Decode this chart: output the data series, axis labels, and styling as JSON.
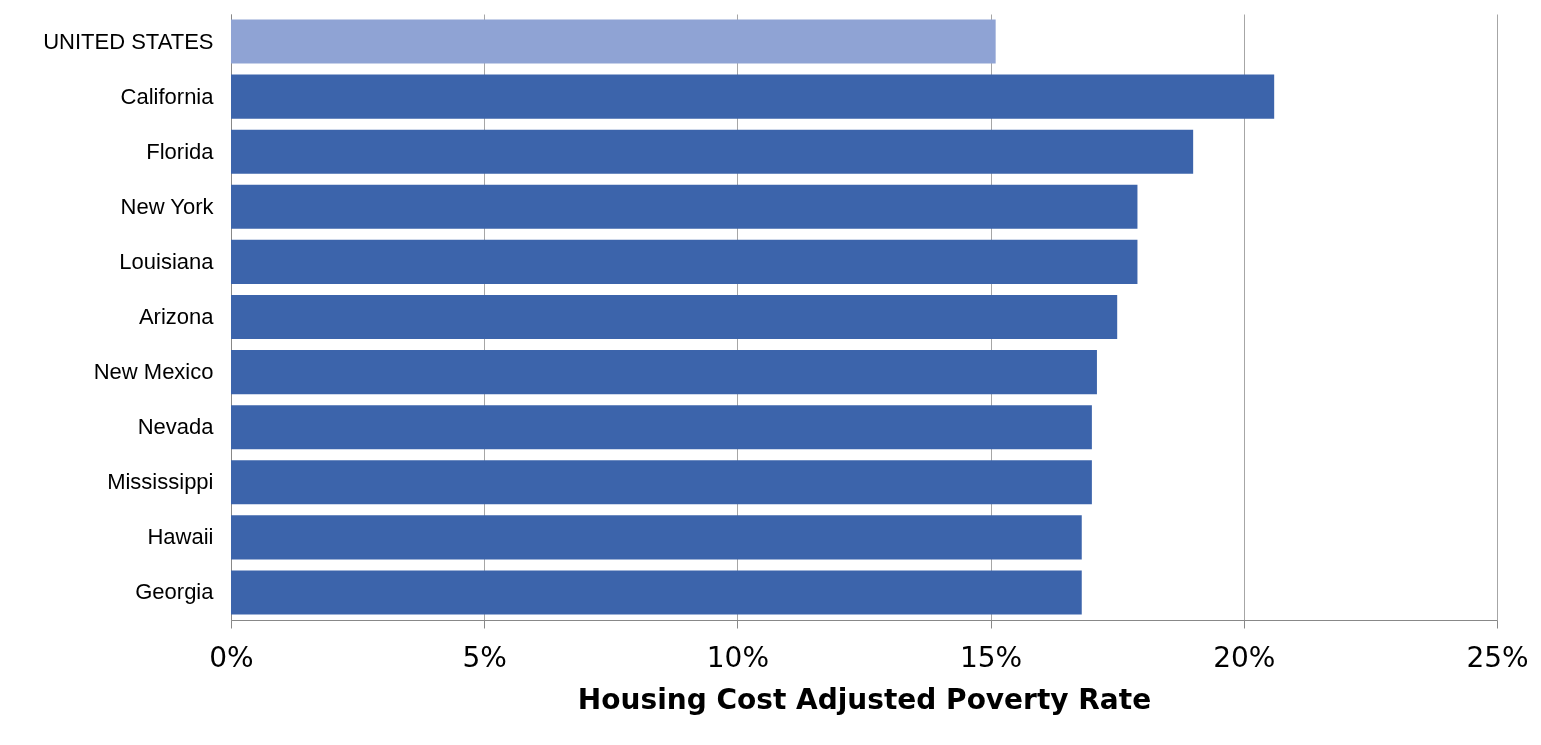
{
  "chart_data": {
    "type": "bar",
    "orientation": "horizontal",
    "xlabel": "Housing Cost Adjusted Poverty Rate",
    "categories": [
      "UNITED STATES",
      "California",
      "Florida",
      "New York",
      "Louisiana",
      "Arizona",
      "New Mexico",
      "Nevada",
      "Mississippi",
      "Hawaii",
      "Georgia"
    ],
    "values": [
      15.1,
      20.6,
      19.0,
      17.9,
      17.9,
      17.5,
      17.1,
      17.0,
      17.0,
      16.8,
      16.8
    ],
    "colors": [
      "#8fa3d4",
      "#3c64ab",
      "#3c64ab",
      "#3c64ab",
      "#3c64ab",
      "#3c64ab",
      "#3c64ab",
      "#3c64ab",
      "#3c64ab",
      "#3c64ab",
      "#3c64ab"
    ],
    "xlim": [
      0,
      25
    ],
    "xticks": [
      {
        "value": 0,
        "label": "0%"
      },
      {
        "value": 5,
        "label": "5%"
      },
      {
        "value": 10,
        "label": "10%"
      },
      {
        "value": 15,
        "label": "15%"
      },
      {
        "value": 20,
        "label": "20%"
      },
      {
        "value": 25,
        "label": "25%"
      }
    ],
    "grid": "x"
  }
}
